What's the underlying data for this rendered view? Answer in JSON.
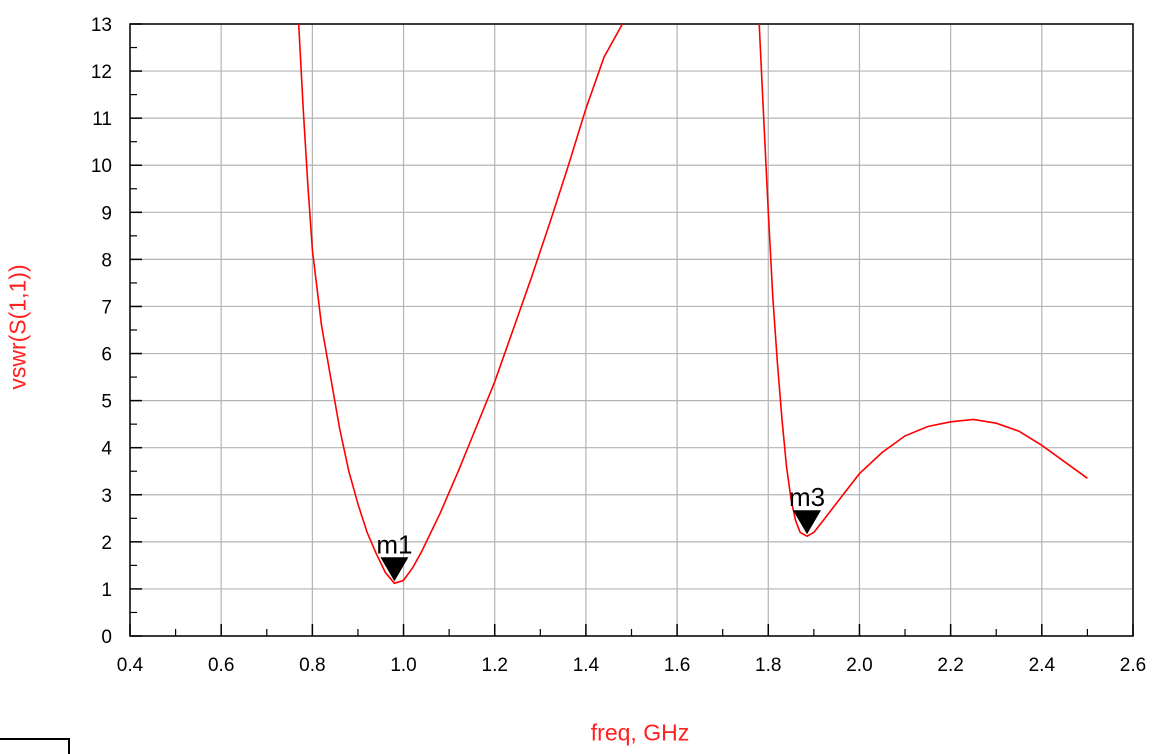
{
  "chart_data": {
    "type": "line",
    "title": "",
    "xlabel": "freq, GHz",
    "ylabel": "vswr(S(1,1))",
    "xlim": [
      0.4,
      2.6
    ],
    "ylim": [
      0,
      13
    ],
    "x_ticks": [
      "0.4",
      "0.6",
      "0.8",
      "1.0",
      "1.2",
      "1.4",
      "1.6",
      "1.8",
      "2.0",
      "2.2",
      "2.4",
      "2.6"
    ],
    "y_ticks": [
      "0",
      "1",
      "2",
      "3",
      "4",
      "5",
      "6",
      "7",
      "8",
      "9",
      "10",
      "11",
      "12",
      "13"
    ],
    "grid": true,
    "line_color": "#ff0000",
    "label_color": "#ff2020",
    "series": [
      {
        "segments": [
          [
            [
              0.77,
              13.0
            ],
            [
              0.78,
              11.2
            ],
            [
              0.79,
              9.6
            ],
            [
              0.8,
              8.2
            ],
            [
              0.82,
              6.6
            ],
            [
              0.84,
              5.5
            ],
            [
              0.86,
              4.4
            ],
            [
              0.88,
              3.5
            ],
            [
              0.9,
              2.8
            ],
            [
              0.92,
              2.2
            ],
            [
              0.94,
              1.75
            ],
            [
              0.96,
              1.35
            ],
            [
              0.98,
              1.12
            ],
            [
              1.0,
              1.18
            ],
            [
              1.02,
              1.45
            ],
            [
              1.04,
              1.8
            ],
            [
              1.06,
              2.2
            ],
            [
              1.08,
              2.6
            ],
            [
              1.1,
              3.05
            ],
            [
              1.12,
              3.5
            ],
            [
              1.16,
              4.45
            ],
            [
              1.2,
              5.4
            ],
            [
              1.24,
              6.5
            ],
            [
              1.28,
              7.6
            ],
            [
              1.32,
              8.75
            ],
            [
              1.36,
              9.95
            ],
            [
              1.4,
              11.2
            ],
            [
              1.44,
              12.3
            ],
            [
              1.48,
              13.0
            ]
          ],
          [
            [
              1.78,
              13.0
            ],
            [
              1.79,
              11.0
            ],
            [
              1.8,
              9.0
            ],
            [
              1.81,
              7.2
            ],
            [
              1.82,
              5.8
            ],
            [
              1.83,
              4.6
            ],
            [
              1.84,
              3.6
            ],
            [
              1.85,
              2.9
            ],
            [
              1.86,
              2.45
            ],
            [
              1.87,
              2.2
            ],
            [
              1.885,
              2.12
            ],
            [
              1.9,
              2.2
            ],
            [
              1.92,
              2.45
            ],
            [
              1.96,
              2.95
            ],
            [
              2.0,
              3.45
            ],
            [
              2.05,
              3.9
            ],
            [
              2.1,
              4.25
            ],
            [
              2.15,
              4.45
            ],
            [
              2.2,
              4.55
            ],
            [
              2.25,
              4.6
            ],
            [
              2.3,
              4.52
            ],
            [
              2.35,
              4.35
            ],
            [
              2.4,
              4.05
            ],
            [
              2.45,
              3.7
            ],
            [
              2.5,
              3.35
            ]
          ]
        ]
      }
    ],
    "markers": [
      {
        "label": "m1",
        "x": 0.98,
        "y": 1.12
      },
      {
        "label": "m3",
        "x": 1.885,
        "y": 2.12
      }
    ]
  }
}
